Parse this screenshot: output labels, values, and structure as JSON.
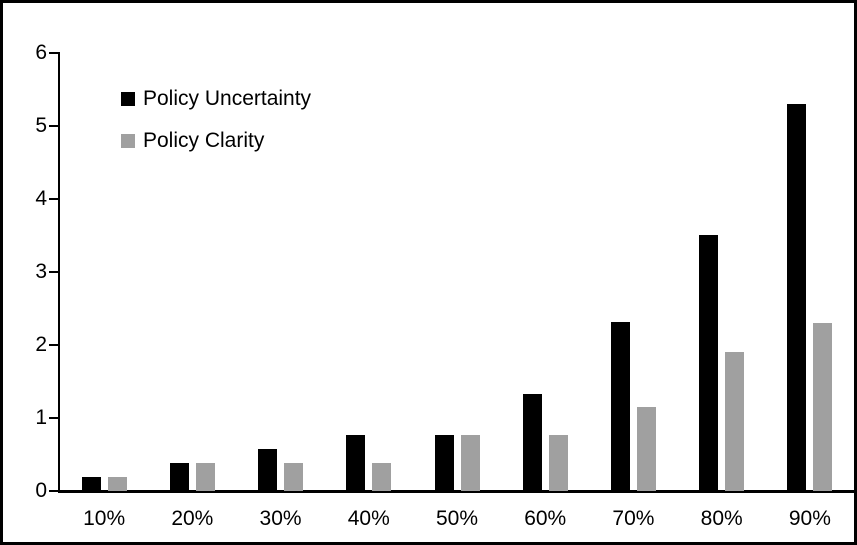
{
  "chart_data": {
    "type": "bar",
    "title": "",
    "xlabel": "",
    "ylabel": "",
    "categories": [
      "10%",
      "20%",
      "30%",
      "40%",
      "50%",
      "60%",
      "70%",
      "80%",
      "90%"
    ],
    "series": [
      {
        "name": "Policy Uncertainty",
        "color": "#000000",
        "values": [
          0.19,
          0.38,
          0.57,
          0.77,
          0.77,
          1.33,
          2.31,
          3.5,
          5.3
        ]
      },
      {
        "name": "Policy Clarity",
        "color": "#a0a0a0",
        "values": [
          0.19,
          0.38,
          0.38,
          0.38,
          0.77,
          0.77,
          1.15,
          1.9,
          2.3
        ]
      }
    ],
    "ylim": [
      0,
      6
    ],
    "yticks": [
      0,
      1,
      2,
      3,
      4,
      5,
      6
    ],
    "grid": false,
    "legend_position": "top-left",
    "colors": {
      "axis": "#000000",
      "background": "#ffffff",
      "frame_border": "#000000"
    }
  }
}
